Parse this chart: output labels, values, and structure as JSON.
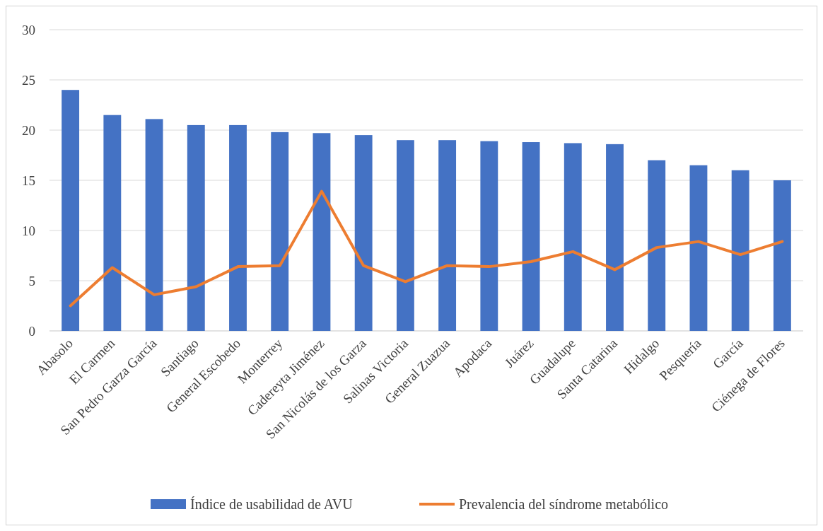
{
  "chart_data": {
    "type": "bar",
    "categories": [
      "Abasolo",
      "El Carmen",
      "San Pedro Garza García",
      "Santiago",
      "General Escobedo",
      "Monterrey",
      "Cadereyta Jiménez",
      "San Nicolás de los Garza",
      "Salinas Victoria",
      "General Zuazua",
      "Apodaca",
      "Juárez",
      "Guadalupe",
      "Santa Catarina",
      "Hidalgo",
      "Pesquería",
      "García",
      "Ciénega de Flores"
    ],
    "series": [
      {
        "name": "Índice de usabilidad de AVU",
        "color": "#4472c4",
        "values": [
          24,
          21.5,
          21.1,
          20.5,
          20.5,
          19.8,
          19.7,
          19.5,
          19,
          19,
          18.9,
          18.8,
          18.7,
          18.6,
          17,
          16.5,
          16,
          15
        ]
      },
      {
        "name": "Prevalencia del síndrome metabólico",
        "type": "line",
        "color": "#ed7d31",
        "values": [
          2.5,
          6.3,
          3.6,
          4.4,
          6.4,
          6.5,
          13.9,
          6.5,
          4.9,
          6.5,
          6.4,
          6.9,
          7.9,
          6.1,
          8.3,
          8.9,
          7.6,
          8.9
        ]
      }
    ],
    "ylim": [
      0,
      30
    ],
    "yticks": [
      0,
      5,
      10,
      15,
      20,
      25,
      30
    ],
    "grid": "y",
    "legend": "bottom",
    "marker": "none",
    "line_style": "solid"
  }
}
